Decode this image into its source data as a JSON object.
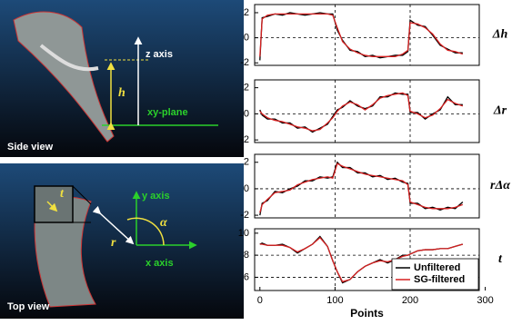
{
  "chart_data": [
    {
      "type": "line",
      "ylabel": "Δh",
      "ylim": [
        -2.2,
        2.65
      ],
      "yticks": [
        -2,
        0,
        2
      ],
      "xlim": [
        -7,
        292
      ],
      "guides": {
        "x": [
          100,
          200
        ],
        "y": [
          0
        ]
      },
      "x": [
        0,
        3,
        10,
        20,
        30,
        40,
        50,
        60,
        70,
        80,
        90,
        97,
        103,
        110,
        120,
        130,
        140,
        150,
        160,
        170,
        180,
        190,
        197,
        200,
        210,
        220,
        230,
        240,
        250,
        260,
        270
      ],
      "series": [
        {
          "color": "#000000",
          "values": [
            -1.8,
            1.6,
            1.7,
            1.9,
            1.8,
            2.0,
            1.9,
            1.8,
            1.9,
            2.0,
            1.9,
            1.9,
            0.6,
            -0.2,
            -1.0,
            -1.1,
            -1.5,
            -1.4,
            -1.6,
            -1.5,
            -1.4,
            -1.4,
            -1.1,
            1.4,
            1.0,
            0.9,
            0.2,
            -0.6,
            -0.9,
            -1.2,
            -1.2
          ]
        },
        {
          "color": "#d62020",
          "values": [
            -1.5,
            1.5,
            1.8,
            1.9,
            1.9,
            1.9,
            1.9,
            1.9,
            1.9,
            1.9,
            1.9,
            1.8,
            0.8,
            -0.3,
            -0.9,
            -1.2,
            -1.4,
            -1.5,
            -1.5,
            -1.5,
            -1.5,
            -1.3,
            -1.0,
            1.2,
            1.1,
            0.8,
            0.3,
            -0.5,
            -1.0,
            -1.1,
            -1.3
          ]
        }
      ]
    },
    {
      "type": "line",
      "ylabel": "Δr",
      "ylim": [
        -2.2,
        2.6
      ],
      "yticks": [
        -2,
        0,
        2
      ],
      "xlim": [
        -7,
        292
      ],
      "guides": {
        "x": [
          100,
          200
        ],
        "y": [
          0
        ]
      },
      "x": [
        0,
        3,
        10,
        20,
        30,
        40,
        50,
        60,
        70,
        80,
        90,
        97,
        103,
        110,
        120,
        130,
        140,
        150,
        160,
        170,
        180,
        190,
        197,
        200,
        210,
        220,
        230,
        240,
        250,
        260,
        270
      ],
      "series": [
        {
          "color": "#000000",
          "values": [
            0.3,
            -0.1,
            -0.4,
            -0.4,
            -0.7,
            -0.7,
            -1.1,
            -1.0,
            -1.4,
            -1.1,
            -0.8,
            -0.2,
            0.3,
            0.5,
            1.0,
            0.6,
            0.4,
            0.6,
            1.3,
            1.3,
            1.6,
            1.5,
            1.5,
            0.1,
            0.1,
            -0.4,
            0.0,
            0.3,
            1.3,
            0.7,
            0.7
          ]
        },
        {
          "color": "#d62020",
          "values": [
            0.2,
            0.0,
            -0.3,
            -0.5,
            -0.6,
            -0.8,
            -1.0,
            -1.1,
            -1.3,
            -1.2,
            -0.7,
            -0.3,
            0.2,
            0.6,
            0.9,
            0.7,
            0.3,
            0.7,
            1.2,
            1.4,
            1.5,
            1.6,
            1.4,
            0.2,
            0.0,
            -0.3,
            -0.1,
            0.4,
            1.1,
            0.8,
            0.6
          ]
        }
      ]
    },
    {
      "type": "line",
      "ylabel": "rΔα",
      "ylim": [
        -2.2,
        2.6
      ],
      "yticks": [
        -2,
        0,
        2
      ],
      "xlim": [
        -7,
        292
      ],
      "guides": {
        "x": [
          100,
          200
        ],
        "y": [
          0
        ]
      },
      "x": [
        0,
        3,
        10,
        20,
        30,
        40,
        50,
        60,
        70,
        80,
        90,
        97,
        103,
        110,
        120,
        130,
        140,
        150,
        160,
        170,
        180,
        190,
        197,
        200,
        210,
        220,
        230,
        240,
        250,
        260,
        270
      ],
      "series": [
        {
          "color": "#000000",
          "values": [
            -2.0,
            -1.1,
            -0.9,
            -0.2,
            -0.3,
            0.0,
            0.2,
            0.6,
            0.6,
            0.9,
            0.8,
            0.9,
            2.0,
            1.6,
            1.6,
            1.2,
            1.2,
            0.9,
            1.0,
            0.7,
            0.8,
            0.5,
            0.4,
            -1.1,
            -1.1,
            -1.5,
            -1.4,
            -1.6,
            -1.4,
            -1.5,
            -1.0
          ]
        },
        {
          "color": "#d62020",
          "values": [
            -1.8,
            -1.2,
            -0.8,
            -0.3,
            -0.2,
            -0.1,
            0.3,
            0.5,
            0.7,
            0.8,
            0.9,
            0.8,
            1.9,
            1.7,
            1.5,
            1.3,
            1.1,
            1.0,
            0.9,
            0.8,
            0.7,
            0.6,
            0.3,
            -1.0,
            -1.2,
            -1.4,
            -1.5,
            -1.5,
            -1.5,
            -1.4,
            -1.2
          ]
        }
      ]
    },
    {
      "type": "line",
      "ylabel": "t",
      "ylim": [
        4.8,
        10.4
      ],
      "yticks": [
        6,
        8,
        10
      ],
      "xlim": [
        -7,
        292
      ],
      "xticks": [
        0,
        100,
        200,
        300
      ],
      "xlabel": "Points",
      "legend": "lower right",
      "guides": {
        "x": [
          100,
          200
        ],
        "y": [
          6,
          8
        ]
      },
      "x": [
        0,
        3,
        10,
        20,
        30,
        40,
        50,
        60,
        70,
        80,
        90,
        97,
        103,
        110,
        120,
        130,
        140,
        150,
        160,
        170,
        180,
        190,
        197,
        200,
        210,
        220,
        230,
        240,
        250,
        260,
        270
      ],
      "series": [
        {
          "name": "Unfiltered",
          "color": "#000000",
          "values": [
            9.0,
            9.1,
            8.9,
            8.9,
            9.0,
            8.7,
            8.2,
            8.6,
            9.0,
            9.7,
            8.8,
            7.5,
            6.5,
            5.5,
            5.8,
            6.5,
            7.0,
            7.3,
            7.6,
            7.3,
            7.6,
            8.0,
            8.0,
            8.1,
            8.4,
            8.5,
            8.5,
            8.6,
            8.6,
            8.8,
            9.0
          ]
        },
        {
          "name": "SG-filtered",
          "color": "#d62020",
          "values": [
            9.0,
            9.0,
            8.9,
            8.9,
            8.9,
            8.7,
            8.3,
            8.6,
            9.0,
            9.6,
            8.8,
            7.5,
            6.5,
            5.6,
            5.8,
            6.5,
            7.0,
            7.3,
            7.5,
            7.4,
            7.6,
            7.9,
            8.0,
            8.1,
            8.4,
            8.5,
            8.5,
            8.6,
            8.6,
            8.8,
            9.0
          ]
        }
      ]
    }
  ],
  "illustrations": [
    {
      "caption": "Side view",
      "labels": [
        "z axis",
        "h",
        "xy-plane"
      ]
    },
    {
      "caption": "Top view",
      "labels": [
        "t",
        "y axis",
        "r",
        "α",
        "x axis"
      ]
    }
  ]
}
